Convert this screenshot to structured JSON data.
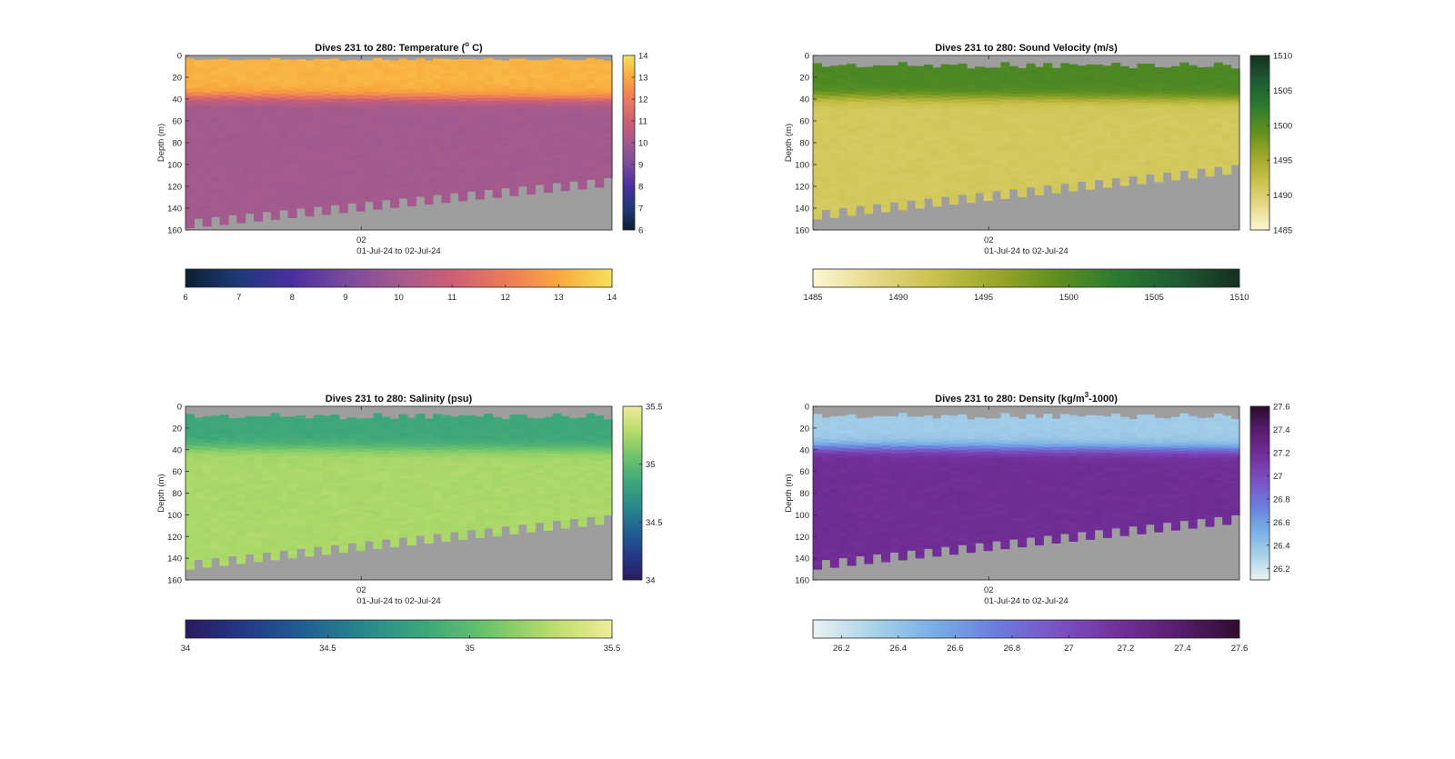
{
  "chart_data": [
    {
      "type": "heatmap",
      "title": "Dives 231 to 280: Temperature (° C)",
      "title_parts": [
        "Dives 231 to 280: Temperature (",
        "o",
        " C)"
      ],
      "ylabel": "Depth (m)",
      "xlabel": "01-Jul-24 to 02-Jul-24",
      "x_tick_labels": [
        "02"
      ],
      "y_ticks": [
        0,
        20,
        40,
        60,
        80,
        100,
        120,
        140,
        160
      ],
      "ylim": [
        0,
        160
      ],
      "y_reversed": true,
      "grid": false,
      "dives": 50,
      "no_data_color": "#9e9e9e",
      "surface_value": 13.2,
      "thermocline_depth_start": 38,
      "thermocline_depth_end": 40,
      "deep_value": 10.0,
      "bottom_depth_start": 158,
      "bottom_depth_end": 120,
      "top_gap_depth": 4,
      "clim": [
        6,
        14
      ],
      "colorbar_ticks": [
        6,
        7,
        8,
        9,
        10,
        11,
        12,
        13,
        14
      ],
      "colorbar_ticks_vertical": [
        6,
        7,
        8,
        9,
        10,
        11,
        12,
        13,
        14
      ],
      "colormap": [
        "#0b1f30",
        "#1d3a7a",
        "#4a2fa0",
        "#7a4a9c",
        "#a35a8e",
        "#cc5f75",
        "#ee7a5a",
        "#f9a83e",
        "#f5e25a"
      ]
    },
    {
      "type": "heatmap",
      "title": "Dives 231 to 280: Sound Velocity (m/s)",
      "title_parts": [
        "Dives 231 to 280: Sound Velocity (m/s)"
      ],
      "ylabel": "Depth (m)",
      "xlabel": "01-Jul-24 to 02-Jul-24",
      "x_tick_labels": [
        "02"
      ],
      "y_ticks": [
        0,
        20,
        40,
        60,
        80,
        100,
        120,
        140,
        160
      ],
      "ylim": [
        0,
        160
      ],
      "y_reversed": true,
      "grid": false,
      "dives": 50,
      "no_data_color": "#9e9e9e",
      "surface_value": 1500.5,
      "thermocline_depth_start": 38,
      "thermocline_depth_end": 40,
      "deep_value": 1491.0,
      "bottom_depth_start": 150,
      "bottom_depth_end": 108,
      "top_gap_depth": 10,
      "clim": [
        1485,
        1510
      ],
      "colorbar_ticks": [
        1485,
        1490,
        1495,
        1500,
        1505,
        1510
      ],
      "colorbar_ticks_vertical": [
        1485,
        1490,
        1495,
        1500,
        1505,
        1510
      ],
      "colormap": [
        "#fdf7d2",
        "#e6d888",
        "#c9c14a",
        "#9aa62a",
        "#5e8f1f",
        "#2b7a2f",
        "#1f5a33",
        "#14301f"
      ]
    },
    {
      "type": "heatmap",
      "title": "Dives 231 to 280: Salinity (psu)",
      "title_parts": [
        "Dives 231 to 280: Salinity (psu)"
      ],
      "ylabel": "Depth (m)",
      "xlabel": "01-Jul-24 to 02-Jul-24",
      "x_tick_labels": [
        "02"
      ],
      "y_ticks": [
        0,
        20,
        40,
        60,
        80,
        100,
        120,
        140,
        160
      ],
      "ylim": [
        0,
        160
      ],
      "y_reversed": true,
      "grid": false,
      "dives": 50,
      "no_data_color": "#9e9e9e",
      "surface_value": 34.85,
      "thermocline_depth_start": 38,
      "thermocline_depth_end": 40,
      "deep_value": 35.25,
      "bottom_depth_start": 150,
      "bottom_depth_end": 108,
      "top_gap_depth": 10,
      "clim": [
        34,
        35.5
      ],
      "colorbar_ticks": [
        34,
        34.5,
        35,
        35.5
      ],
      "colorbar_ticks_vertical": [
        34,
        34.5,
        35,
        35.5
      ],
      "colormap": [
        "#2a1a5e",
        "#233a8a",
        "#1f6292",
        "#2a8a8a",
        "#3fa87a",
        "#6fc46a",
        "#b7dc6a",
        "#f1ec9a"
      ]
    },
    {
      "type": "heatmap",
      "title": "Dives 231 to 280: Density (kg/m³-1000)",
      "title_parts": [
        "Dives 231 to 280: Density (kg/m",
        "3",
        "-1000)"
      ],
      "ylabel": "Depth (m)",
      "xlabel": "01-Jul-24 to 02-Jul-24",
      "x_tick_labels": [
        "02"
      ],
      "y_ticks": [
        0,
        20,
        40,
        60,
        80,
        100,
        120,
        140,
        160
      ],
      "ylim": [
        0,
        160
      ],
      "y_reversed": true,
      "grid": false,
      "dives": 50,
      "no_data_color": "#9e9e9e",
      "surface_value": 26.35,
      "thermocline_depth_start": 38,
      "thermocline_depth_end": 40,
      "deep_value": 27.2,
      "bottom_depth_start": 150,
      "bottom_depth_end": 108,
      "top_gap_depth": 10,
      "clim": [
        26.1,
        27.6
      ],
      "colorbar_ticks": [
        26.2,
        26.4,
        26.6,
        26.8,
        27,
        27.2,
        27.4,
        27.6
      ],
      "colorbar_ticks_vertical": [
        26.2,
        26.4,
        26.6,
        26.8,
        27,
        27.2,
        27.4,
        27.6
      ],
      "colormap": [
        "#e9f2f3",
        "#a9d2e8",
        "#78aee6",
        "#6a7ddc",
        "#7b52c4",
        "#73309a",
        "#581d6e",
        "#2e0b2e"
      ]
    }
  ]
}
